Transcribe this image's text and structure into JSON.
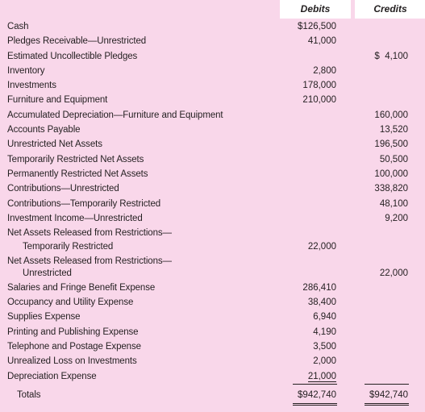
{
  "columns": {
    "debits": "Debits",
    "credits": "Credits"
  },
  "rows": [
    {
      "label": "Cash",
      "debit": "$126,500",
      "credit": ""
    },
    {
      "label": "Pledges Receivable—Unrestricted",
      "debit": "41,000",
      "credit": ""
    },
    {
      "label": "Estimated Uncollectible Pledges",
      "debit": "",
      "credit": "$  4,100"
    },
    {
      "label": "Inventory",
      "debit": "2,800",
      "credit": ""
    },
    {
      "label": "Investments",
      "debit": "178,000",
      "credit": ""
    },
    {
      "label": "Furniture and Equipment",
      "debit": "210,000",
      "credit": ""
    },
    {
      "label": "Accumulated Depreciation—Furniture and Equipment",
      "debit": "",
      "credit": "160,000"
    },
    {
      "label": "Accounts Payable",
      "debit": "",
      "credit": "13,520"
    },
    {
      "label": "Unrestricted Net Assets",
      "debit": "",
      "credit": "196,500"
    },
    {
      "label": "Temporarily Restricted Net Assets",
      "debit": "",
      "credit": "50,500"
    },
    {
      "label": "Permanently Restricted Net Assets",
      "debit": "",
      "credit": "100,000"
    },
    {
      "label": "Contributions—Unrestricted",
      "debit": "",
      "credit": "338,820"
    },
    {
      "label": "Contributions—Temporarily Restricted",
      "debit": "",
      "credit": "48,100"
    },
    {
      "label": "Investment Income—Unrestricted",
      "debit": "",
      "credit": "9,200"
    },
    {
      "label": "Net Assets Released from Restrictions—",
      "debit": "",
      "credit": ""
    },
    {
      "label": "Temporarily Restricted",
      "debit": "22,000",
      "credit": ""
    },
    {
      "label": "Net Assets Released from Restrictions—",
      "debit": "",
      "credit": ""
    },
    {
      "label": "Unrestricted",
      "debit": "",
      "credit": "22,000"
    },
    {
      "label": "Salaries and Fringe Benefit Expense",
      "debit": "286,410",
      "credit": ""
    },
    {
      "label": "Occupancy and Utility Expense",
      "debit": "38,400",
      "credit": ""
    },
    {
      "label": "Supplies Expense",
      "debit": "6,940",
      "credit": ""
    },
    {
      "label": "Printing and Publishing Expense",
      "debit": "4,190",
      "credit": ""
    },
    {
      "label": "Telephone and Postage Expense",
      "debit": "3,500",
      "credit": ""
    },
    {
      "label": "Unrealized Loss on Investments",
      "debit": "2,000",
      "credit": ""
    },
    {
      "label": "Depreciation Expense",
      "debit": "21,000",
      "credit": ""
    }
  ],
  "totals": {
    "label": "Totals",
    "debit": "$942,740",
    "credit": "$942,740"
  }
}
